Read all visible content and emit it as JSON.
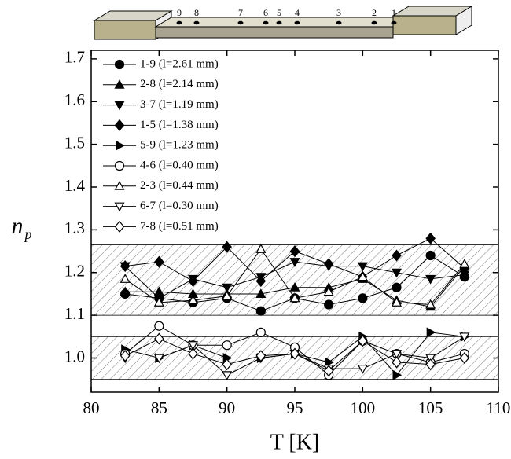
{
  "chart_data": {
    "type": "line",
    "xlabel": "T [K]",
    "ylabel": "n",
    "ylabel_sub": "p",
    "annotations": [
      "9",
      "8",
      "7",
      "6",
      "5",
      "4",
      "3",
      "2",
      "1"
    ],
    "x": [
      82.5,
      85,
      87.5,
      90,
      92.5,
      95,
      97.5,
      100,
      102.5,
      105,
      107.5
    ],
    "xlim": [
      80,
      110
    ],
    "xticks": [
      80,
      85,
      90,
      95,
      100,
      105,
      110
    ],
    "ylim": [
      0.92,
      1.72
    ],
    "yticks": [
      {
        "value": 1,
        "label": "1.0"
      },
      1.1,
      1.2,
      1.3,
      1.4,
      1.5,
      1.6,
      1.7
    ],
    "bands": [
      [
        1.1,
        1.265
      ],
      [
        0.95,
        1.05
      ]
    ],
    "series": [
      {
        "name": "1-9 (l=2.61 mm)",
        "color": "#000000",
        "marker": "circle",
        "filled": true,
        "values": [
          1.15,
          1.14,
          1.13,
          1.14,
          1.11,
          1.14,
          1.125,
          1.14,
          1.165,
          1.24,
          1.19
        ]
      },
      {
        "name": "2-8 (l=2.14 mm)",
        "color": "#000000",
        "marker": "triangle-up",
        "filled": true,
        "values": [
          1.155,
          1.155,
          1.15,
          1.15,
          1.15,
          1.165,
          1.165,
          1.185,
          1.135,
          1.12,
          1.215
        ]
      },
      {
        "name": "3-7 (l=1.19 mm)",
        "color": "#000000",
        "marker": "triangle-down",
        "filled": true,
        "values": [
          1.215,
          1.14,
          1.185,
          1.165,
          1.19,
          1.225,
          1.215,
          1.215,
          1.2,
          1.185,
          1.195
        ]
      },
      {
        "name": "1-5 (l=1.38 mm)",
        "color": "#000000",
        "marker": "diamond",
        "filled": true,
        "values": [
          1.215,
          1.225,
          1.18,
          1.26,
          1.18,
          1.25,
          1.22,
          1.19,
          1.24,
          1.28,
          1.21
        ]
      },
      {
        "name": "5-9 (l=1.23 mm)",
        "color": "#000000",
        "marker": "triangle-right",
        "filled": true,
        "values": [
          1.02,
          1.0,
          1.03,
          1.0,
          1.0,
          1.01,
          0.99,
          1.05,
          0.96,
          1.06,
          1.05
        ]
      },
      {
        "name": "4-6 (l=0.40 mm)",
        "color": "#000000",
        "marker": "circle",
        "filled": false,
        "values": [
          1.01,
          1.075,
          1.03,
          1.03,
          1.06,
          1.025,
          0.96,
          1.04,
          1.01,
          0.99,
          1.01
        ]
      },
      {
        "name": "2-3 (l=0.44 mm)",
        "color": "#000000",
        "marker": "triangle-up",
        "filled": false,
        "values": [
          1.185,
          1.13,
          1.135,
          1.145,
          1.255,
          1.14,
          1.155,
          1.19,
          1.13,
          1.125,
          1.22
        ]
      },
      {
        "name": "6-7 (l=0.30 mm)",
        "color": "#000000",
        "marker": "triangle-down",
        "filled": false,
        "values": [
          1.0,
          1.0,
          1.03,
          0.96,
          1.0,
          1.01,
          0.975,
          0.975,
          1.01,
          1.0,
          1.05
        ]
      },
      {
        "name": "7-8 (l=0.51 mm)",
        "color": "#000000",
        "marker": "diamond",
        "filled": false,
        "values": [
          1.005,
          1.045,
          1.01,
          0.985,
          1.005,
          1.01,
          0.97,
          1.04,
          0.99,
          0.985,
          1.0
        ]
      }
    ]
  }
}
